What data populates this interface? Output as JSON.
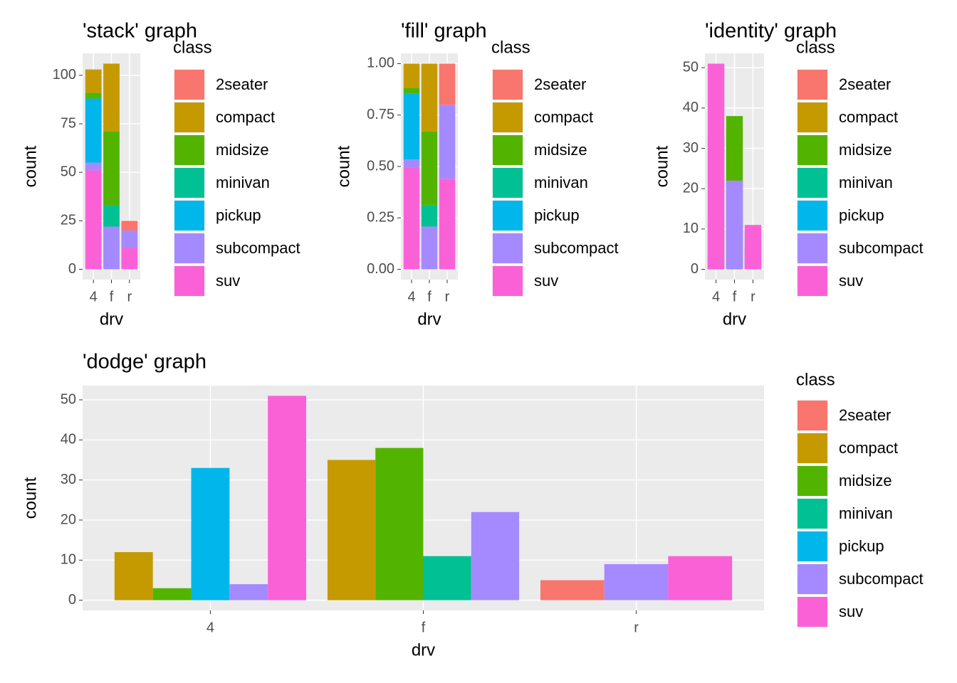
{
  "chart_data": [
    {
      "type": "bar",
      "position": "stack",
      "title": "'stack' graph",
      "x_label": "drv",
      "y_label": "count",
      "legend_title": "class",
      "categories": [
        "4",
        "f",
        "r"
      ],
      "ylim": [
        -5.3,
        111.3
      ],
      "yticks": [
        0,
        25,
        50,
        75,
        100
      ],
      "grid": true,
      "series": [
        {
          "name": "2seater",
          "color": "#F8766D",
          "values": [
            null,
            null,
            5
          ]
        },
        {
          "name": "compact",
          "color": "#C49A00",
          "values": [
            12,
            35,
            null
          ]
        },
        {
          "name": "midsize",
          "color": "#53B400",
          "values": [
            3,
            38,
            null
          ]
        },
        {
          "name": "minivan",
          "color": "#00C094",
          "values": [
            null,
            11,
            null
          ]
        },
        {
          "name": "pickup",
          "color": "#00B6EB",
          "values": [
            33,
            null,
            null
          ]
        },
        {
          "name": "subcompact",
          "color": "#A58AFF",
          "values": [
            4,
            22,
            9
          ]
        },
        {
          "name": "suv",
          "color": "#FB61D7",
          "values": [
            51,
            null,
            11
          ]
        }
      ]
    },
    {
      "type": "bar",
      "position": "fill",
      "title": "'fill' graph",
      "x_label": "drv",
      "y_label": "count",
      "legend_title": "class",
      "categories": [
        "4",
        "f",
        "r"
      ],
      "ylim": [
        -0.05,
        1.05
      ],
      "yticks": [
        {
          "value": 0,
          "label": "0.00"
        },
        {
          "value": 0.25,
          "label": "0.25"
        },
        {
          "value": 0.5,
          "label": "0.50"
        },
        {
          "value": 0.75,
          "label": "0.75"
        },
        {
          "value": 1,
          "label": "1.00"
        }
      ],
      "grid": true,
      "series": [
        {
          "name": "2seater",
          "color": "#F8766D",
          "values": [
            null,
            null,
            0.2
          ]
        },
        {
          "name": "compact",
          "color": "#C49A00",
          "values": [
            0.117,
            0.33,
            null
          ]
        },
        {
          "name": "midsize",
          "color": "#53B400",
          "values": [
            0.029,
            0.358,
            null
          ]
        },
        {
          "name": "minivan",
          "color": "#00C094",
          "values": [
            null,
            0.104,
            null
          ]
        },
        {
          "name": "pickup",
          "color": "#00B6EB",
          "values": [
            0.32,
            null,
            null
          ]
        },
        {
          "name": "subcompact",
          "color": "#A58AFF",
          "values": [
            0.039,
            0.208,
            0.36
          ]
        },
        {
          "name": "suv",
          "color": "#FB61D7",
          "values": [
            0.495,
            null,
            0.44
          ]
        }
      ]
    },
    {
      "type": "bar",
      "position": "identity",
      "title": "'identity' graph",
      "x_label": "drv",
      "y_label": "count",
      "legend_title": "class",
      "categories": [
        "4",
        "f",
        "r"
      ],
      "ylim": [
        -2.55,
        53.55
      ],
      "yticks": [
        0,
        10,
        20,
        30,
        40,
        50
      ],
      "grid": true,
      "series": [
        {
          "name": "2seater",
          "color": "#F8766D",
          "values": [
            null,
            null,
            5
          ]
        },
        {
          "name": "compact",
          "color": "#C49A00",
          "values": [
            12,
            35,
            null
          ]
        },
        {
          "name": "midsize",
          "color": "#53B400",
          "values": [
            3,
            38,
            null
          ]
        },
        {
          "name": "minivan",
          "color": "#00C094",
          "values": [
            null,
            11,
            null
          ]
        },
        {
          "name": "pickup",
          "color": "#00B6EB",
          "values": [
            33,
            null,
            null
          ]
        },
        {
          "name": "subcompact",
          "color": "#A58AFF",
          "values": [
            4,
            22,
            9
          ]
        },
        {
          "name": "suv",
          "color": "#FB61D7",
          "values": [
            51,
            null,
            11
          ]
        }
      ]
    },
    {
      "type": "bar",
      "position": "dodge",
      "title": "'dodge' graph",
      "x_label": "drv",
      "y_label": "count",
      "legend_title": "class",
      "categories": [
        "4",
        "f",
        "r"
      ],
      "ylim": [
        -2.55,
        53.55
      ],
      "yticks": [
        0,
        10,
        20,
        30,
        40,
        50
      ],
      "grid": true,
      "series": [
        {
          "name": "2seater",
          "color": "#F8766D",
          "values": [
            null,
            null,
            5
          ]
        },
        {
          "name": "compact",
          "color": "#C49A00",
          "values": [
            12,
            35,
            null
          ]
        },
        {
          "name": "midsize",
          "color": "#53B400",
          "values": [
            3,
            38,
            null
          ]
        },
        {
          "name": "minivan",
          "color": "#00C094",
          "values": [
            null,
            11,
            null
          ]
        },
        {
          "name": "pickup",
          "color": "#00B6EB",
          "values": [
            33,
            null,
            null
          ]
        },
        {
          "name": "subcompact",
          "color": "#A58AFF",
          "values": [
            4,
            22,
            9
          ]
        },
        {
          "name": "suv",
          "color": "#FB61D7",
          "values": [
            51,
            null,
            11
          ]
        }
      ]
    }
  ]
}
